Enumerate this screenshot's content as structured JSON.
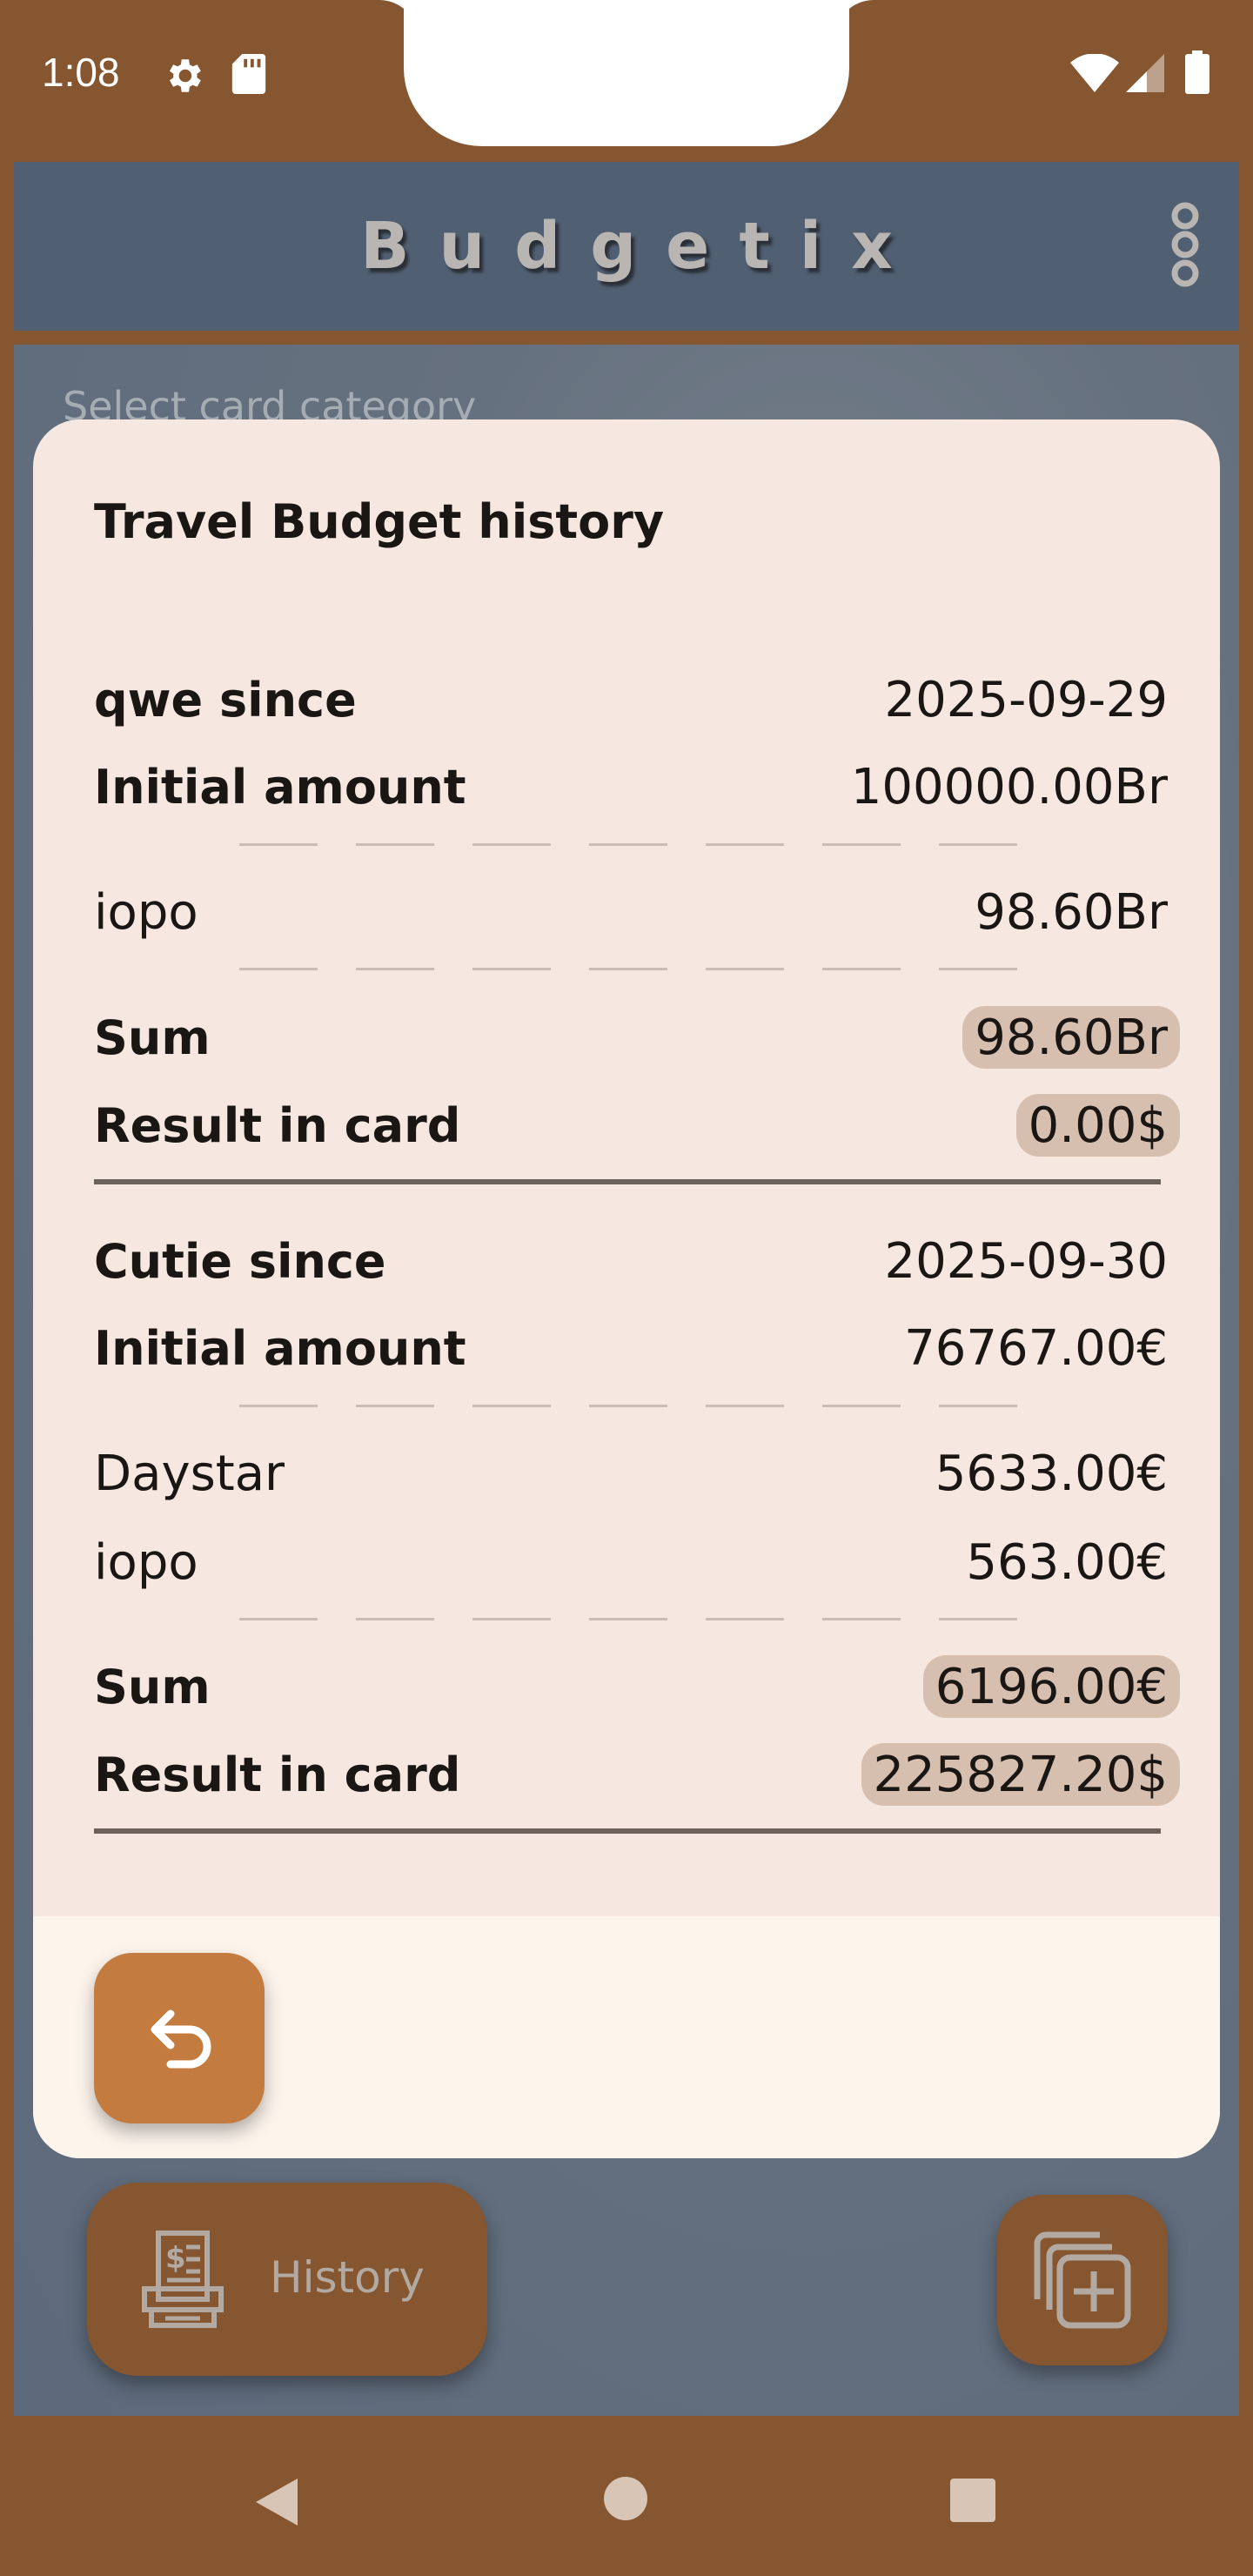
{
  "status_bar": {
    "time": "1:08",
    "icons": [
      "settings-icon",
      "sd-card-icon",
      "wifi-icon",
      "cell-signal-icon",
      "battery-icon"
    ]
  },
  "app": {
    "title": "Budgetix",
    "menu_icon": "overflow-menu-icon",
    "select_hint": "Select card category",
    "history_button_label": "History",
    "history_icon": "receipt-printer-icon",
    "add_card_icon": "add-card-icon"
  },
  "modal": {
    "title": "Travel Budget history",
    "cards": [
      {
        "header_label": "qwe since",
        "since_date": "2025-09-29",
        "initial_label": "Initial amount",
        "initial_amount": "100000.00Br",
        "entries": [
          {
            "name": "iopo",
            "amount": "98.60Br"
          }
        ],
        "sum_label": "Sum",
        "sum_value": "98.60Br",
        "result_label": "Result in card",
        "result_value": "0.00$"
      },
      {
        "header_label": "Cutie since",
        "since_date": "2025-09-30",
        "initial_label": "Initial amount",
        "initial_amount": "76767.00€",
        "entries": [
          {
            "name": "Daystar",
            "amount": "5633.00€"
          },
          {
            "name": "iopo",
            "amount": "563.00€"
          }
        ],
        "sum_label": "Sum",
        "sum_value": "6196.00€",
        "result_label": "Result in card",
        "result_value": "225827.20$"
      }
    ],
    "back_icon": "undo-arrow-icon"
  },
  "colors": {
    "frame_brown": "#85562f",
    "header_slate": "#505f72",
    "modal_bg": "#f6e8e0",
    "pill_bg": "#d7bfb0",
    "accent_orange": "#c47b40"
  },
  "nav_bar": {
    "icons": [
      "nav-back-icon",
      "nav-home-icon",
      "nav-recents-icon"
    ]
  }
}
